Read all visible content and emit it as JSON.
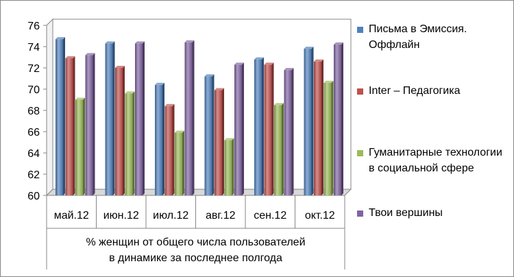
{
  "chart_data": {
    "type": "bar",
    "categories": [
      "май.12",
      "июн.12",
      "июл.12",
      "авг.12",
      "сен.12",
      "окт.12"
    ],
    "xlabel": "% женщин от общего числа пользователей\nв динамике за последнее полгода",
    "ylim": [
      60,
      76
    ],
    "yticks": [
      60,
      62,
      64,
      66,
      68,
      70,
      72,
      74,
      76
    ],
    "grid": false,
    "legend_position": "right",
    "series": [
      {
        "name": "Письма в Эмиссия. Оффлайн",
        "color": "#4F81BD",
        "values": [
          74.7,
          74.3,
          70.4,
          71.2,
          72.8,
          73.8
        ]
      },
      {
        "name": "Inter – Педагогика",
        "color": "#C0504D",
        "values": [
          72.9,
          72.0,
          68.4,
          69.9,
          72.3,
          72.6
        ]
      },
      {
        "name": "Гуманитарные технологии в социальной сфере",
        "color": "#9BBB59",
        "values": [
          69.0,
          69.6,
          65.9,
          65.2,
          68.5,
          70.6
        ]
      },
      {
        "name": "Твои вершины",
        "color": "#8064A2",
        "values": [
          73.2,
          74.3,
          74.4,
          72.3,
          71.8,
          74.2
        ]
      }
    ]
  },
  "legend": {
    "items": [
      "Письма в Эмиссия. Оффлайн",
      "Inter – Педагогика",
      "Гуманитарные технологии в социальной сфере",
      "Твои вершины"
    ]
  }
}
